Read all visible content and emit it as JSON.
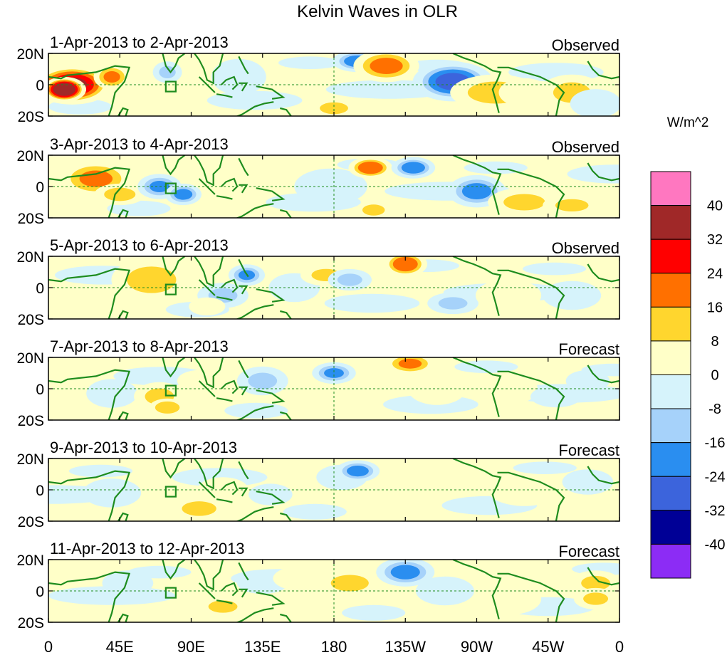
{
  "chart_data": {
    "type": "heatmap",
    "title": "Kelvin Waves in OLR",
    "units_label": "W/m^2",
    "x_ticks": [
      "0",
      "45E",
      "90E",
      "135E",
      "180",
      "135W",
      "90W",
      "45W",
      "0"
    ],
    "y_ticks": [
      "20N",
      "0",
      "20S"
    ],
    "xlim": [
      0,
      360
    ],
    "ylim": [
      -20,
      20
    ],
    "colorbar": {
      "labels": [
        "40",
        "32",
        "24",
        "16",
        "8",
        "0",
        "-8",
        "-16",
        "-24",
        "-32",
        "-40"
      ],
      "colors": [
        "#ff77c0",
        "#a02828",
        "#ff0000",
        "#ff7000",
        "#ffd62e",
        "#ffffc8",
        "#d6f3fb",
        "#a6d2fa",
        "#2a8ef0",
        "#3c64dc",
        "#000096",
        "#8c2cf5"
      ]
    },
    "panels": [
      {
        "left": "1-Apr-2013 to 2-Apr-2013",
        "right": "Observed",
        "blobs": [
          [
            15,
            0,
            22,
            11,
            35
          ],
          [
            10,
            -3,
            12,
            7,
            45
          ],
          [
            40,
            5,
            10,
            7,
            18
          ],
          [
            75,
            8,
            8,
            6,
            -10
          ],
          [
            195,
            15,
            14,
            6,
            -22
          ],
          [
            213,
            12,
            18,
            9,
            20
          ],
          [
            255,
            2,
            22,
            11,
            -28
          ],
          [
            282,
            -5,
            25,
            10,
            12
          ],
          [
            300,
            -5,
            14,
            8,
            8
          ],
          [
            180,
            -15,
            12,
            5,
            14
          ],
          [
            120,
            5,
            15,
            10,
            -8
          ],
          [
            330,
            -5,
            18,
            10,
            10
          ],
          [
            345,
            -12,
            14,
            8,
            -8
          ]
        ]
      },
      {
        "left": "3-Apr-2013 to 4-Apr-2013",
        "right": "Observed",
        "blobs": [
          [
            30,
            5,
            20,
            10,
            18
          ],
          [
            45,
            -5,
            14,
            6,
            12
          ],
          [
            70,
            0,
            12,
            7,
            -18
          ],
          [
            85,
            -5,
            10,
            6,
            -20
          ],
          [
            150,
            5,
            12,
            7,
            8
          ],
          [
            178,
            0,
            20,
            10,
            -8
          ],
          [
            203,
            12,
            12,
            6,
            24
          ],
          [
            230,
            12,
            12,
            6,
            -22
          ],
          [
            270,
            -3,
            16,
            9,
            -20
          ],
          [
            300,
            -10,
            20,
            8,
            10
          ],
          [
            330,
            -12,
            16,
            6,
            10
          ],
          [
            205,
            -15,
            10,
            5,
            12
          ]
        ]
      },
      {
        "left": "5-Apr-2013 to 6-Apr-2013",
        "right": "Observed",
        "blobs": [
          [
            65,
            5,
            22,
            12,
            12
          ],
          [
            110,
            -5,
            14,
            7,
            -10
          ],
          [
            125,
            8,
            10,
            6,
            -18
          ],
          [
            155,
            0,
            14,
            8,
            -8
          ],
          [
            175,
            8,
            14,
            6,
            10
          ],
          [
            190,
            5,
            12,
            6,
            -10
          ],
          [
            225,
            15,
            12,
            7,
            24
          ],
          [
            255,
            -10,
            14,
            6,
            -10
          ],
          [
            290,
            -5,
            18,
            9,
            8
          ],
          [
            330,
            -5,
            16,
            8,
            -8
          ],
          [
            100,
            -12,
            10,
            5,
            8
          ]
        ]
      },
      {
        "left": "7-Apr-2013 to 8-Apr-2013",
        "right": "Forecast",
        "blobs": [
          [
            40,
            -3,
            14,
            8,
            -8
          ],
          [
            70,
            -5,
            14,
            8,
            10
          ],
          [
            75,
            -12,
            10,
            5,
            16
          ],
          [
            95,
            5,
            12,
            6,
            8
          ],
          [
            135,
            5,
            14,
            8,
            -10
          ],
          [
            180,
            10,
            12,
            6,
            -18
          ],
          [
            228,
            16,
            14,
            6,
            18
          ],
          [
            245,
            0,
            16,
            9,
            8
          ],
          [
            290,
            0,
            16,
            9,
            8
          ],
          [
            320,
            -5,
            14,
            6,
            -8
          ],
          [
            340,
            5,
            12,
            6,
            -8
          ]
        ]
      },
      {
        "left": "9-Apr-2013 to 10-Apr-2013",
        "right": "Forecast",
        "blobs": [
          [
            40,
            -2,
            16,
            8,
            -8
          ],
          [
            95,
            -12,
            14,
            6,
            16
          ],
          [
            110,
            0,
            14,
            7,
            8
          ],
          [
            140,
            -3,
            12,
            6,
            -8
          ],
          [
            185,
            8,
            14,
            7,
            -8
          ],
          [
            195,
            12,
            12,
            6,
            -20
          ],
          [
            230,
            10,
            12,
            6,
            8
          ],
          [
            300,
            0,
            20,
            9,
            8
          ],
          [
            340,
            5,
            14,
            7,
            -8
          ]
        ]
      },
      {
        "left": "11-Apr-2013 to 12-Apr-2013",
        "right": "Forecast",
        "blobs": [
          [
            50,
            5,
            14,
            7,
            -8
          ],
          [
            110,
            -10,
            14,
            6,
            10
          ],
          [
            135,
            5,
            14,
            6,
            -8
          ],
          [
            160,
            8,
            16,
            7,
            8
          ],
          [
            190,
            5,
            16,
            7,
            14
          ],
          [
            225,
            12,
            16,
            8,
            -20
          ],
          [
            250,
            0,
            16,
            8,
            -8
          ],
          [
            290,
            -5,
            18,
            9,
            8
          ],
          [
            345,
            5,
            14,
            7,
            10
          ],
          [
            345,
            -5,
            12,
            6,
            10
          ]
        ]
      }
    ]
  }
}
